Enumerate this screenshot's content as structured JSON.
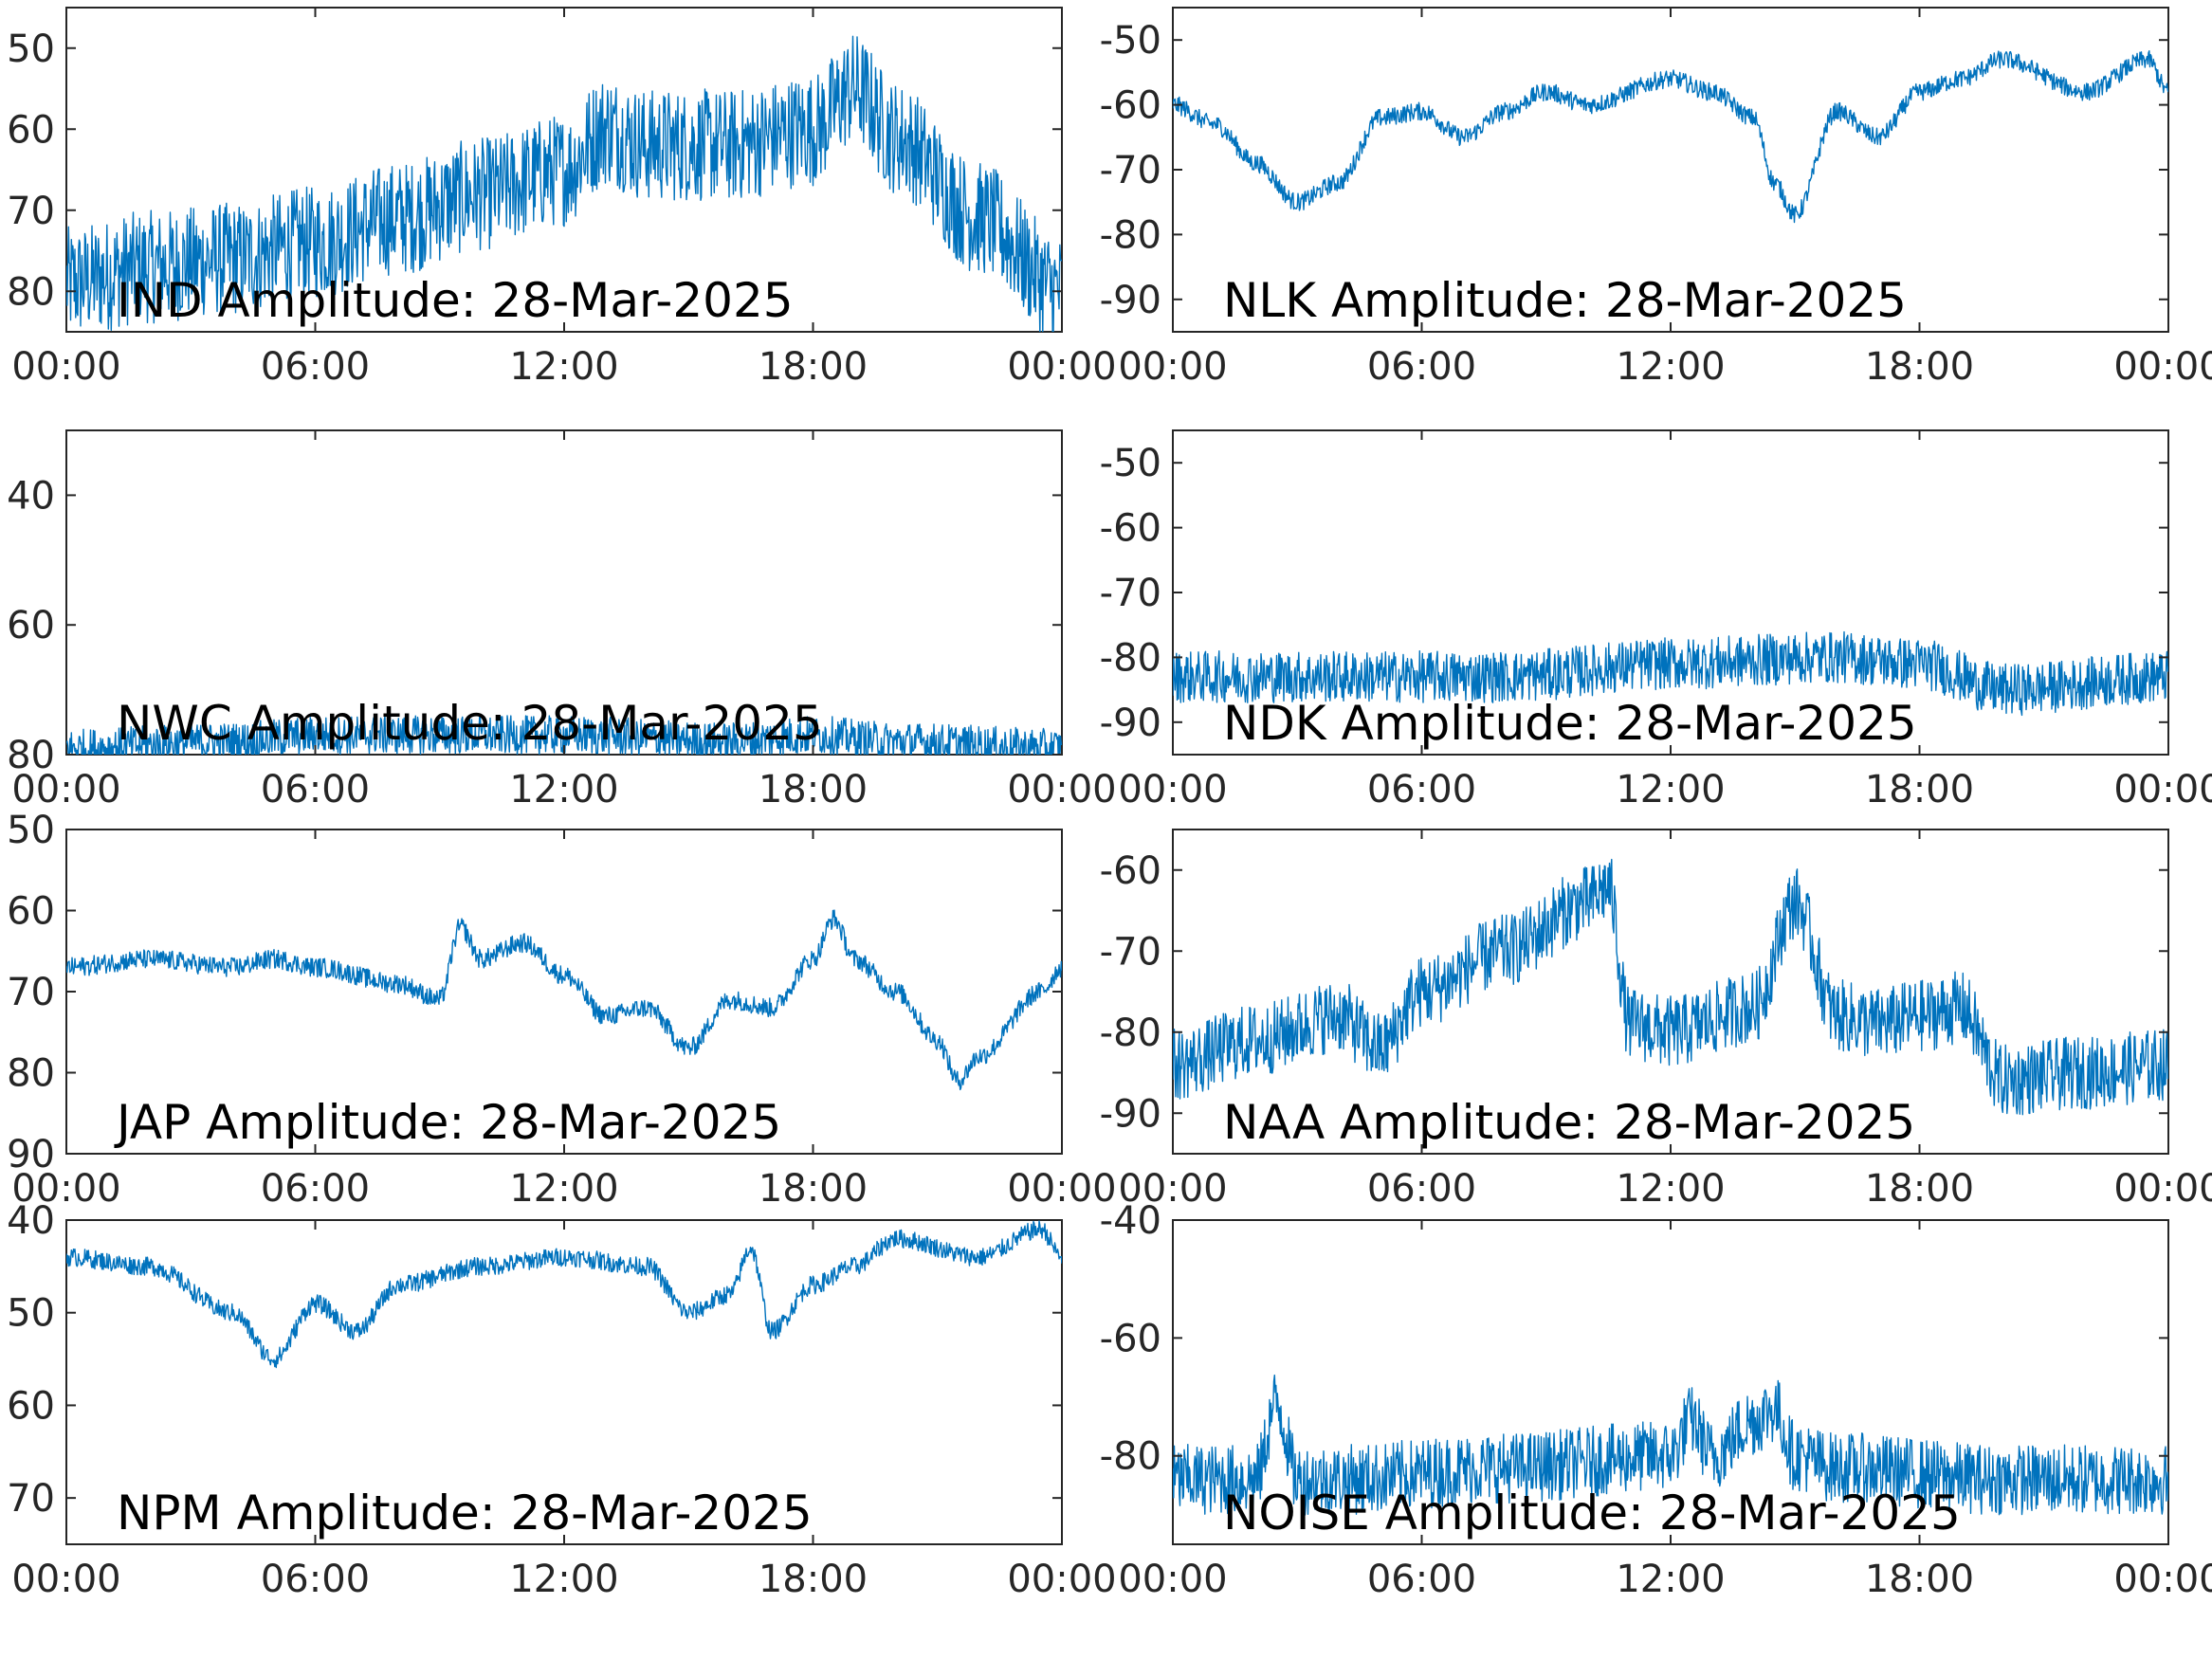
{
  "chart_data": [
    {
      "type": "line",
      "label": "IND Amplitude: 28-Mar-2025",
      "x_ticks": [
        "00:00",
        "06:00",
        "12:00",
        "18:00",
        "00:00"
      ],
      "y_ticks": [
        "50",
        "60",
        "70",
        "80"
      ],
      "y_ticks_values": [
        -50,
        -60,
        -70,
        -80
      ],
      "ylim": [
        -85,
        -45
      ],
      "series": [
        {
          "color": "#0072bd",
          "noise": 7,
          "x": [
            0,
            2,
            4,
            6,
            8,
            10,
            12,
            13,
            14,
            16,
            18,
            19,
            20,
            22,
            24
          ],
          "y": [
            -79,
            -77,
            -76,
            -74,
            -71,
            -68,
            -65,
            -60,
            -62,
            -62,
            -60,
            -55,
            -61,
            -71,
            -80
          ]
        }
      ]
    },
    {
      "type": "line",
      "label": "NLK Amplitude: 28-Mar-2025",
      "x_ticks": [
        "00:00",
        "06:00",
        "12:00",
        "18:00",
        "00:00"
      ],
      "y_ticks": [
        "-50",
        "-60",
        "-70",
        "-80",
        "-90"
      ],
      "y_ticks_values": [
        -50,
        -60,
        -70,
        -80,
        -90
      ],
      "ylim": [
        -95,
        -45
      ],
      "series": [
        {
          "color": "#0072bd",
          "noise": 1.4,
          "x": [
            0,
            1,
            2,
            3,
            4,
            5,
            6,
            7,
            8,
            9,
            10,
            12,
            13,
            14,
            14.5,
            15,
            16,
            17,
            18,
            19,
            20,
            22,
            23.5,
            24
          ],
          "y": [
            -60,
            -63,
            -69,
            -75,
            -72,
            -62,
            -61,
            -65,
            -61,
            -58,
            -60,
            -56,
            -58,
            -62,
            -72,
            -77,
            -61,
            -65,
            -58,
            -56,
            -53,
            -58,
            -53,
            -58
          ]
        }
      ]
    },
    {
      "type": "line",
      "label": "NWC Amplitude: 28-Mar-2025",
      "x_ticks": [
        "00:00",
        "06:00",
        "12:00",
        "18:00",
        "00:00"
      ],
      "y_ticks": [
        "40",
        "60",
        "80"
      ],
      "y_ticks_values": [
        -40,
        -60,
        -80
      ],
      "ylim": [
        -80,
        -30
      ],
      "series": [
        {
          "color": "#0072bd",
          "noise": 3,
          "x": [
            0,
            4,
            6,
            10,
            12,
            16,
            18,
            20,
            24
          ],
          "y": [
            -79,
            -78,
            -77,
            -77,
            -77,
            -78,
            -77,
            -78,
            -79
          ]
        }
      ]
    },
    {
      "type": "line",
      "label": "NDK Amplitude: 28-Mar-2025",
      "x_ticks": [
        "00:00",
        "06:00",
        "12:00",
        "18:00",
        "00:00"
      ],
      "y_ticks": [
        "-50",
        "-60",
        "-70",
        "-80",
        "-90"
      ],
      "y_ticks_values": [
        -50,
        -60,
        -70,
        -80,
        -90
      ],
      "ylim": [
        -95,
        -45
      ],
      "series": [
        {
          "color": "#0072bd",
          "noise": 4,
          "x": [
            0,
            4,
            8,
            12,
            16,
            18,
            20,
            24
          ],
          "y": [
            -83,
            -83,
            -83,
            -81,
            -80,
            -81,
            -85,
            -83
          ]
        }
      ]
    },
    {
      "type": "line",
      "label": "JAP Amplitude: 28-Mar-2025",
      "x_ticks": [
        "00:00",
        "06:00",
        "12:00",
        "18:00",
        "00:00"
      ],
      "y_ticks": [
        "50",
        "60",
        "70",
        "80",
        "90"
      ],
      "y_ticks_values": [
        -50,
        -60,
        -70,
        -80,
        -90
      ],
      "ylim": [
        -90,
        -50
      ],
      "series": [
        {
          "color": "#0072bd",
          "noise": 1.2,
          "x": [
            0,
            2,
            4,
            5,
            6,
            8,
            9,
            9.5,
            10,
            11,
            12,
            13,
            14,
            15,
            16,
            17,
            18,
            18.5,
            19,
            20,
            21,
            21.5,
            22,
            23.5,
            24
          ],
          "y": [
            -67,
            -66,
            -67,
            -66,
            -67,
            -69,
            -71,
            -62,
            -66,
            -64,
            -68,
            -73,
            -72,
            -77,
            -71,
            -72,
            -66,
            -61,
            -66,
            -70,
            -76,
            -81,
            -78,
            -70,
            -67
          ]
        }
      ]
    },
    {
      "type": "line",
      "label": "NAA Amplitude: 28-Mar-2025",
      "x_ticks": [
        "00:00",
        "06:00",
        "12:00",
        "18:00",
        "00:00"
      ],
      "y_ticks": [
        "-60",
        "-70",
        "-80",
        "-90"
      ],
      "y_ticks_values": [
        -60,
        -70,
        -80,
        -90
      ],
      "ylim": [
        -95,
        -55
      ],
      "series": [
        {
          "color": "#0072bd",
          "noise": 4.5,
          "x": [
            0,
            2,
            4,
            5,
            6,
            8,
            10,
            10.5,
            11,
            12,
            14,
            15,
            16,
            17,
            18,
            19,
            20,
            22,
            24
          ],
          "y": [
            -84,
            -81,
            -78,
            -82,
            -75,
            -70,
            -64,
            -62,
            -79,
            -80,
            -77,
            -64,
            -78,
            -79,
            -78,
            -77,
            -86,
            -85,
            -84
          ]
        }
      ]
    },
    {
      "type": "line",
      "label": "NPM Amplitude: 28-Mar-2025",
      "x_ticks": [
        "00:00",
        "06:00",
        "12:00",
        "18:00",
        "00:00"
      ],
      "y_ticks": [
        "40",
        "50",
        "60",
        "70"
      ],
      "y_ticks_values": [
        -40,
        -50,
        -60,
        -70
      ],
      "ylim": [
        -75,
        -40
      ],
      "series": [
        {
          "color": "#0072bd",
          "noise": 1,
          "x": [
            0,
            2,
            4,
            5,
            6,
            7,
            8,
            10,
            12,
            14,
            15,
            16,
            16.5,
            17,
            18,
            19,
            20,
            22,
            23.5,
            24
          ],
          "y": [
            -44,
            -45,
            -50,
            -55,
            -49,
            -52,
            -47,
            -45,
            -44,
            -45,
            -50,
            -48,
            -43,
            -52,
            -47,
            -45,
            -42,
            -44,
            -41,
            -44
          ]
        }
      ]
    },
    {
      "type": "line",
      "label": "NOISE Amplitude: 28-Mar-2025",
      "x_ticks": [
        "00:00",
        "06:00",
        "12:00",
        "18:00",
        "00:00"
      ],
      "y_ticks": [
        "-40",
        "-60",
        "-80"
      ],
      "y_ticks_values": [
        -40,
        -60,
        -80
      ],
      "ylim": [
        -95,
        -40
      ],
      "series": [
        {
          "color": "#0072bd",
          "noise": 6,
          "x": [
            0,
            2,
            2.5,
            3,
            4,
            8,
            12,
            12.5,
            13,
            14,
            14.5,
            15,
            16,
            20,
            24
          ],
          "y": [
            -84,
            -84,
            -71,
            -84,
            -84,
            -82,
            -80,
            -74,
            -80,
            -74,
            -72,
            -80,
            -82,
            -84,
            -84
          ]
        }
      ]
    }
  ]
}
